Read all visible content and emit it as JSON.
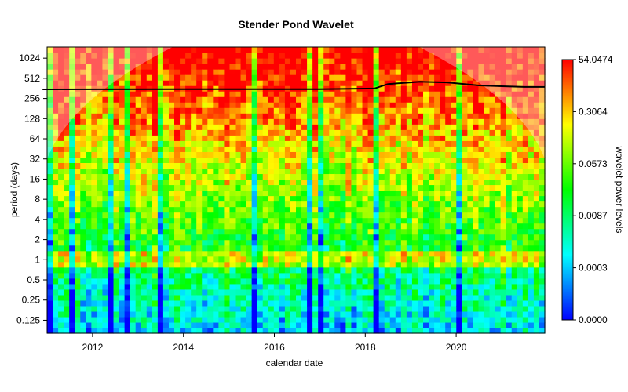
{
  "chart_data": {
    "type": "heatmap",
    "title": "Stender Pond Wavelet",
    "xlabel": "calendar date",
    "ylabel": "period (days)",
    "x_ticks": [
      "2012",
      "2014",
      "2016",
      "2018",
      "2020"
    ],
    "x_tick_years": [
      2012,
      2014,
      2016,
      2018,
      2020
    ],
    "xlim": [
      2011.0,
      2021.95
    ],
    "y_ticks": [
      "0.125",
      "0.25",
      "0.5",
      "1",
      "2",
      "4",
      "8",
      "16",
      "32",
      "64",
      "128",
      "256",
      "512",
      "1024"
    ],
    "y_tick_values": [
      0.125,
      0.25,
      0.5,
      1,
      2,
      4,
      8,
      16,
      32,
      64,
      128,
      256,
      512,
      1024
    ],
    "ylim": [
      0.08,
      1500
    ],
    "y_scale": "log2",
    "colorbar": {
      "label": "wavelet power levels",
      "ticks": [
        "54.0474",
        "0.3064",
        "0.0573",
        "0.0087",
        "0.0003",
        "0.0000"
      ],
      "palette": [
        "#0000ff",
        "#0080ff",
        "#00ffff",
        "#00ff80",
        "#00ff00",
        "#80ff00",
        "#ffff00",
        "#ff8000",
        "#ff0000"
      ],
      "placement": "right"
    },
    "ridge_color": "#000000",
    "cone_of_influence": true
  }
}
